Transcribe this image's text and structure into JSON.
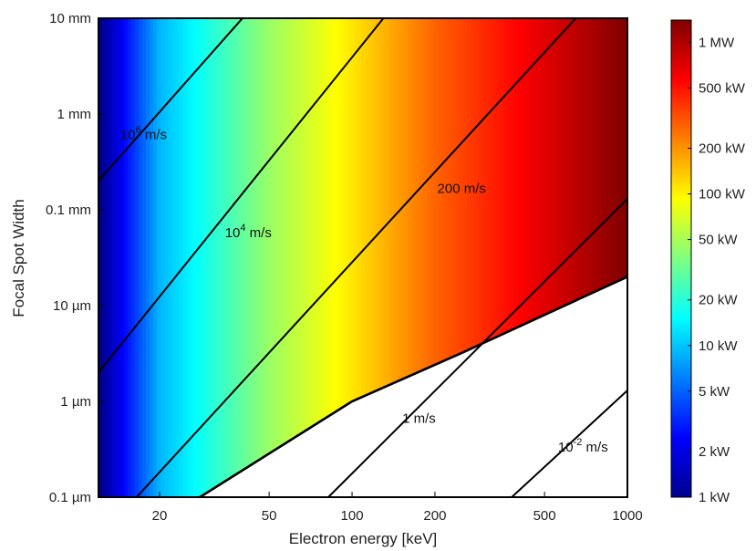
{
  "chart_data": {
    "type": "heatmap",
    "title": "",
    "xlabel": "Electron energy [keV]",
    "ylabel": "Focal Spot Width",
    "x_scale": "log",
    "y_scale": "log",
    "x_range_keV": [
      12,
      1000
    ],
    "y_range_m": [
      1e-07,
      0.01
    ],
    "x_ticks": [
      {
        "value": 20,
        "label": "20"
      },
      {
        "value": 50,
        "label": "50"
      },
      {
        "value": 100,
        "label": "100"
      },
      {
        "value": 200,
        "label": "200"
      },
      {
        "value": 500,
        "label": "500"
      },
      {
        "value": 1000,
        "label": "1000"
      }
    ],
    "y_ticks": [
      {
        "value": 1e-07,
        "label": "0.1 µm"
      },
      {
        "value": 1e-06,
        "label": "1 µm"
      },
      {
        "value": 1e-05,
        "label": "10 µm"
      },
      {
        "value": 0.0001,
        "label": "0.1 mm"
      },
      {
        "value": 0.001,
        "label": "1 mm"
      },
      {
        "value": 0.01,
        "label": "10 mm"
      }
    ],
    "colorbar": {
      "scale": "log",
      "range_kW": [
        1,
        1400
      ],
      "colormap": "jet",
      "ticks": [
        {
          "value": 1,
          "label": "1 kW"
        },
        {
          "value": 2,
          "label": "2 kW"
        },
        {
          "value": 5,
          "label": "5 kW"
        },
        {
          "value": 10,
          "label": "10 kW"
        },
        {
          "value": 20,
          "label": "20 kW"
        },
        {
          "value": 50,
          "label": "50 kW"
        },
        {
          "value": 100,
          "label": "100 kW"
        },
        {
          "value": 200,
          "label": "200 kW"
        },
        {
          "value": 500,
          "label": "500 kW"
        },
        {
          "value": 1000,
          "label": "1 MW"
        }
      ]
    },
    "power_vs_energy_kW": [
      {
        "keV": 12,
        "kW": 1
      },
      {
        "keV": 20,
        "kW": 9
      },
      {
        "keV": 50,
        "kW": 45
      },
      {
        "keV": 100,
        "kW": 110
      },
      {
        "keV": 200,
        "kW": 280
      },
      {
        "keV": 500,
        "kW": 700
      },
      {
        "keV": 1000,
        "kW": 1400
      }
    ],
    "excluded_region_boundary": [
      {
        "keV": 28,
        "width_m": 1e-07
      },
      {
        "keV": 100,
        "width_m": 1e-06
      },
      {
        "keV": 250,
        "width_m": 3.2e-06
      },
      {
        "keV": 1000,
        "width_m": 2e-05
      }
    ],
    "contours": [
      {
        "label_base": "10",
        "label_exp": "6",
        "label_unit": " m/s",
        "label_at": {
          "keV": 17.5,
          "width_m": 0.00055
        },
        "points": [
          {
            "keV": 12,
            "width_m": 0.0002
          },
          {
            "keV": 40,
            "width_m": 0.01
          }
        ]
      },
      {
        "label_base": "10",
        "label_exp": "4",
        "label_unit": " m/s",
        "label_at": {
          "keV": 42,
          "width_m": 5.2e-05
        },
        "points": [
          {
            "keV": 12,
            "width_m": 2e-06
          },
          {
            "keV": 130,
            "width_m": 0.01
          }
        ]
      },
      {
        "label_base": "200 m/s",
        "label_exp": "",
        "label_unit": "",
        "label_at": {
          "keV": 250,
          "width_m": 0.00015
        },
        "points": [
          {
            "keV": 16.5,
            "width_m": 1e-07
          },
          {
            "keV": 650,
            "width_m": 0.01
          }
        ]
      },
      {
        "label_base": "1 m/s",
        "label_exp": "",
        "label_unit": "",
        "label_at": {
          "keV": 175,
          "width_m": 6e-07
        },
        "points": [
          {
            "keV": 82,
            "width_m": 1e-07
          },
          {
            "keV": 1000,
            "width_m": 0.00013
          }
        ]
      },
      {
        "label_base": "10",
        "label_exp": "-2",
        "label_unit": " m/s",
        "label_at": {
          "keV": 690,
          "width_m": 3e-07
        },
        "points": [
          {
            "keV": 380,
            "width_m": 1e-07
          },
          {
            "keV": 1000,
            "width_m": 1.3e-06
          }
        ]
      }
    ]
  }
}
